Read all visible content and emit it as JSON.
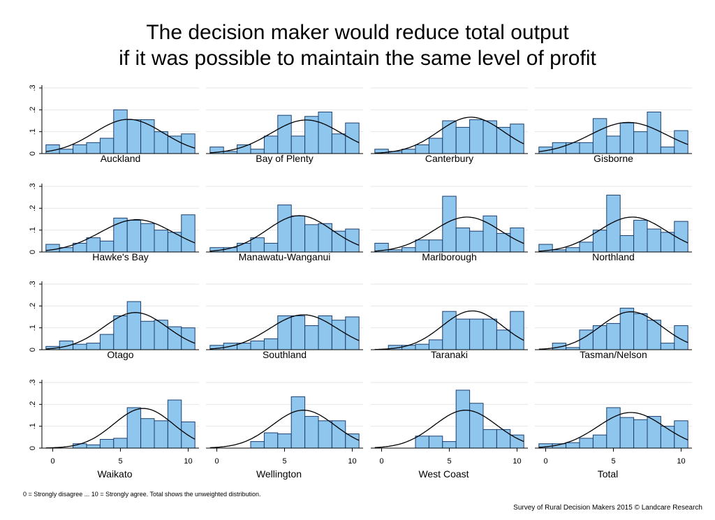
{
  "title_line1": "The decision maker would reduce total output",
  "title_line2": "if it was possible to maintain the same level of profit",
  "footnote": "0 = Strongly disagree ... 10 = Strongly agree. Total shows the unweighted distribution.",
  "credit": "Survey of Rural Decision Makers 2015 © Landcare Research",
  "colors": {
    "bar_fill": "#8ec6ee",
    "bar_stroke": "#1c3f6e",
    "grid": "#e6e6e6",
    "curve": "#000000"
  },
  "chart_data": {
    "type": "bar",
    "x_categories": [
      0,
      1,
      2,
      3,
      4,
      5,
      6,
      7,
      8,
      9,
      10
    ],
    "x_ticks": [
      "0",
      "5",
      "10"
    ],
    "y_ticks": [
      "0",
      ".1",
      ".2",
      ".3"
    ],
    "ylim": [
      0,
      0.3
    ],
    "overlay": "normal density curve",
    "panels": [
      {
        "name": "Auckland",
        "values": [
          0.04,
          0.02,
          0.04,
          0.05,
          0.07,
          0.2,
          0.155,
          0.155,
          0.1,
          0.08,
          0.09
        ],
        "mean": 5.6,
        "sd": 2.55
      },
      {
        "name": "Bay of Plenty",
        "values": [
          0.03,
          0.01,
          0.04,
          0.02,
          0.08,
          0.175,
          0.08,
          0.17,
          0.19,
          0.09,
          0.14
        ],
        "mean": 6.6,
        "sd": 2.6
      },
      {
        "name": "Canterbury",
        "values": [
          0.02,
          0.01,
          0.02,
          0.04,
          0.07,
          0.15,
          0.12,
          0.155,
          0.15,
          0.12,
          0.135
        ],
        "mean": 6.6,
        "sd": 2.4
      },
      {
        "name": "Gisborne",
        "values": [
          0.03,
          0.05,
          0.05,
          0.05,
          0.16,
          0.08,
          0.14,
          0.1,
          0.19,
          0.03,
          0.105
        ],
        "mean": 6.1,
        "sd": 2.8
      },
      {
        "name": "Hawke's Bay",
        "values": [
          0.035,
          0.02,
          0.04,
          0.065,
          0.05,
          0.155,
          0.145,
          0.13,
          0.1,
          0.09,
          0.17
        ],
        "mean": 6.2,
        "sd": 2.7
      },
      {
        "name": "Manawatu-Wanganui",
        "values": [
          0.02,
          0.02,
          0.04,
          0.065,
          0.04,
          0.215,
          0.165,
          0.125,
          0.13,
          0.095,
          0.105
        ],
        "mean": 6.1,
        "sd": 2.4
      },
      {
        "name": "Marlborough",
        "values": [
          0.04,
          0.01,
          0.02,
          0.055,
          0.055,
          0.255,
          0.11,
          0.095,
          0.165,
          0.085,
          0.11
        ],
        "mean": 6.3,
        "sd": 2.5
      },
      {
        "name": "Northland",
        "values": [
          0.035,
          0.01,
          0.02,
          0.045,
          0.1,
          0.26,
          0.075,
          0.145,
          0.105,
          0.09,
          0.14
        ],
        "mean": 6.4,
        "sd": 2.5
      },
      {
        "name": "Otago",
        "values": [
          0.015,
          0.04,
          0.025,
          0.03,
          0.07,
          0.155,
          0.22,
          0.13,
          0.135,
          0.105,
          0.1
        ],
        "mean": 6.1,
        "sd": 2.35
      },
      {
        "name": "Southland",
        "values": [
          0.02,
          0.03,
          0.03,
          0.04,
          0.05,
          0.155,
          0.155,
          0.11,
          0.155,
          0.135,
          0.15
        ],
        "mean": 6.4,
        "sd": 2.5
      },
      {
        "name": "Taranaki",
        "values": [
          0.0,
          0.02,
          0.02,
          0.025,
          0.045,
          0.175,
          0.14,
          0.14,
          0.14,
          0.09,
          0.175
        ],
        "mean": 6.7,
        "sd": 2.25
      },
      {
        "name": "Tasman/Nelson",
        "values": [
          0.0,
          0.03,
          0.01,
          0.09,
          0.11,
          0.12,
          0.19,
          0.165,
          0.135,
          0.03,
          0.11
        ],
        "mean": 6.3,
        "sd": 2.3
      },
      {
        "name": "Waikato",
        "values": [
          0.0,
          0.0,
          0.02,
          0.015,
          0.04,
          0.045,
          0.185,
          0.135,
          0.125,
          0.22,
          0.12
        ],
        "mean": 6.7,
        "sd": 2.2
      },
      {
        "name": "Wellington",
        "values": [
          0.0,
          0.0,
          0.0,
          0.03,
          0.07,
          0.065,
          0.235,
          0.145,
          0.125,
          0.125,
          0.065
        ],
        "mean": 6.4,
        "sd": 2.3
      },
      {
        "name": "West Coast",
        "values": [
          0.0,
          0.0,
          0.0,
          0.055,
          0.055,
          0.03,
          0.265,
          0.205,
          0.085,
          0.085,
          0.06
        ],
        "mean": 6.2,
        "sd": 2.3
      },
      {
        "name": "Total",
        "values": [
          0.02,
          0.02,
          0.025,
          0.045,
          0.06,
          0.185,
          0.14,
          0.13,
          0.145,
          0.1,
          0.125
        ],
        "mean": 6.3,
        "sd": 2.45
      }
    ]
  }
}
